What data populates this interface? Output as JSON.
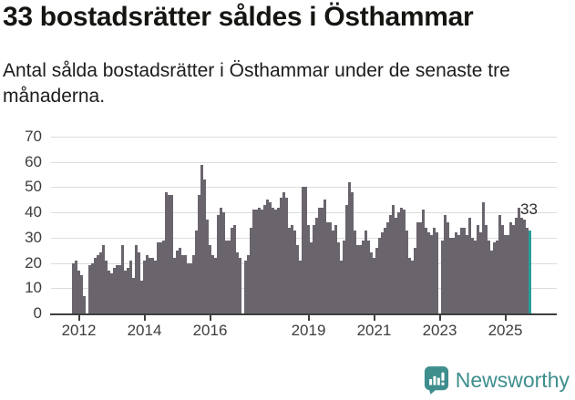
{
  "header": {
    "title": "33 bostadsrätter såldes i Östhammar",
    "subtitle": "Antal sålda bostadsrätter i Östhammar under de senaste tre månaderna."
  },
  "annotation": {
    "last_value_label": "33"
  },
  "branding": {
    "name": "Newsworthy",
    "logo_icon": "newsworthy-bubble-chart-icon",
    "logo_color": "#3E8E8D"
  },
  "colors": {
    "bar": "#6a656d",
    "highlight": "#2b9c9a",
    "grid": "#dcdcdc",
    "axis": "#3f3f3f",
    "text": "#1c1c1c"
  },
  "chart_data": {
    "type": "bar",
    "title": "33 bostadsrätter såldes i Östhammar",
    "xlabel": "",
    "ylabel": "",
    "ylim": [
      0,
      70
    ],
    "yticks": [
      0,
      10,
      20,
      30,
      40,
      50,
      60,
      70
    ],
    "grid": true,
    "frequency": "monthly",
    "highlight_last": true,
    "last_value": 33,
    "xticks": [
      {
        "index": 2,
        "label": "2012"
      },
      {
        "index": 26,
        "label": "2014"
      },
      {
        "index": 50,
        "label": "2016"
      },
      {
        "index": 86,
        "label": "2019"
      },
      {
        "index": 110,
        "label": "2021"
      },
      {
        "index": 134,
        "label": "2023"
      },
      {
        "index": 158,
        "label": "2025"
      }
    ],
    "values": [
      20,
      21,
      17,
      15,
      7,
      0,
      19,
      20,
      22,
      23,
      24,
      27,
      21,
      17,
      16,
      18,
      19,
      19,
      27,
      17,
      18,
      21,
      14,
      27,
      24,
      13,
      21,
      23,
      22,
      22,
      21,
      28,
      28,
      29,
      48,
      47,
      47,
      22,
      25,
      26,
      23,
      23,
      20,
      20,
      23,
      33,
      47,
      59,
      53,
      37,
      27,
      23,
      22,
      39,
      42,
      40,
      29,
      29,
      34,
      35,
      24,
      22,
      0,
      21,
      23,
      34,
      41,
      41,
      42,
      41,
      43,
      45,
      44,
      42,
      41,
      42,
      46,
      48,
      46,
      34,
      35,
      33,
      27,
      21,
      50,
      50,
      35,
      28,
      35,
      38,
      42,
      42,
      45,
      36,
      36,
      33,
      35,
      28,
      21,
      29,
      43,
      52,
      48,
      33,
      27,
      27,
      29,
      33,
      29,
      24,
      22,
      26,
      30,
      32,
      34,
      36,
      39,
      43,
      38,
      40,
      42,
      41,
      33,
      22,
      21,
      26,
      36,
      36,
      41,
      34,
      32,
      31,
      34,
      32,
      0,
      29,
      39,
      36,
      30,
      30,
      32,
      31,
      34,
      34,
      31,
      38,
      30,
      29,
      35,
      32,
      44,
      35,
      29,
      25,
      28,
      29,
      39,
      35,
      31,
      31,
      36,
      35,
      38,
      42,
      38,
      37,
      34,
      33
    ]
  }
}
